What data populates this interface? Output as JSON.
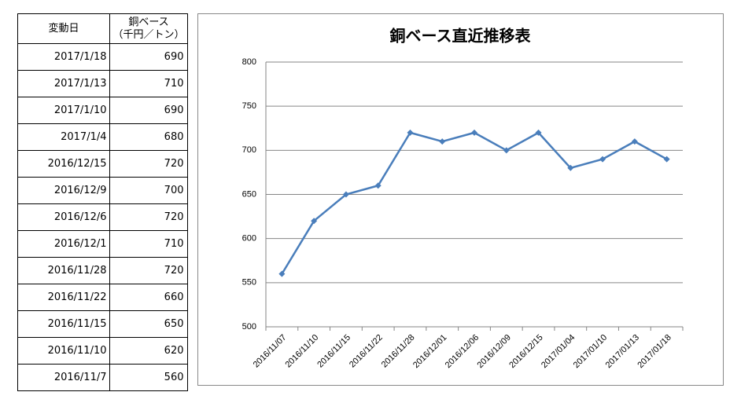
{
  "table": {
    "header": {
      "date": "変動日",
      "price": [
        "銅ベース",
        "（千円／トン）"
      ]
    },
    "rows": [
      {
        "date": "2017/1/18",
        "price": 690,
        "color": "#e00000"
      },
      {
        "date": "2017/1/13",
        "price": 710
      },
      {
        "date": "2017/1/10",
        "price": 690
      },
      {
        "date": "2017/1/4",
        "price": 680
      },
      {
        "date": "2016/12/15",
        "price": 720
      },
      {
        "date": "2016/12/9",
        "price": 700
      },
      {
        "date": "2016/12/6",
        "price": 720
      },
      {
        "date": "2016/12/1",
        "price": 710
      },
      {
        "date": "2016/11/28",
        "price": 720
      },
      {
        "date": "2016/11/22",
        "price": 660
      },
      {
        "date": "2016/11/15",
        "price": 650
      },
      {
        "date": "2016/11/10",
        "price": 620
      },
      {
        "date": "2016/11/7",
        "price": 560
      }
    ]
  },
  "chart_data": {
    "type": "line",
    "title": "銅ベース直近推移表",
    "categories": [
      "2016/11/07",
      "2016/11/10",
      "2016/11/15",
      "2016/11/22",
      "2016/11/28",
      "2016/12/01",
      "2016/12/06",
      "2016/12/09",
      "2016/12/15",
      "2017/01/04",
      "2017/01/10",
      "2017/01/13",
      "2017/01/18"
    ],
    "values": [
      560,
      620,
      650,
      660,
      720,
      710,
      720,
      700,
      720,
      680,
      690,
      710,
      690
    ],
    "color": "#4a7ebb",
    "ylim": [
      500,
      800
    ],
    "yticks": [
      500,
      550,
      600,
      650,
      700,
      750,
      800
    ],
    "grid": true
  }
}
